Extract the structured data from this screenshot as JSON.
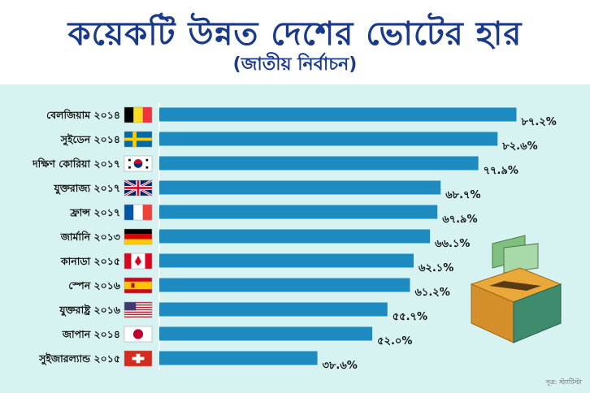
{
  "header": {
    "title": "কয়েকটি উন্নত দেশের ভোটের হার",
    "subtitle": "(জাতীয় নির্বাচন)"
  },
  "source": "সূত্র: স্ট্যাটিস্টা",
  "colors": {
    "bar": "#1d8bbf",
    "title": "#1a3a8c",
    "panel": "#d6f3f1"
  },
  "chart_data": {
    "type": "bar",
    "orientation": "horizontal",
    "categories": [
      "বেলজিয়াম ২০১৪",
      "সুইডেন ২০১৪",
      "দক্ষিণ কোরিয়া ২০১৭",
      "যুক্তরাজ্য ২০১৭",
      "ফ্রান্স ২০১৭",
      "জার্মানি ২০১৩",
      "কানাডা ২০১৫",
      "স্পেন ২০১৬",
      "যুক্তরাষ্ট্র ২০১৬",
      "জাপান ২০১৪",
      "সুইজারল্যান্ড ২০১৫"
    ],
    "values": [
      87.2,
      82.6,
      77.9,
      68.7,
      67.9,
      66.1,
      62.1,
      61.2,
      55.7,
      52.0,
      38.6
    ],
    "value_labels": [
      "৮৭.২%",
      "৮২.৬%",
      "৭৭.৯%",
      "৬৮.৭%",
      "৬৭.৯%",
      "৬৬.১%",
      "৬২.১%",
      "৬১.২%",
      "৫৫.৭%",
      "৫২.০%",
      "৩৮.৬%"
    ],
    "flags": [
      "belgium-flag",
      "sweden-flag",
      "south-korea-flag",
      "uk-flag",
      "france-flag",
      "germany-flag",
      "canada-flag",
      "spain-flag",
      "usa-flag",
      "japan-flag",
      "switzerland-flag"
    ],
    "xlim": [
      0,
      100
    ],
    "grid": false,
    "legend": "none"
  }
}
